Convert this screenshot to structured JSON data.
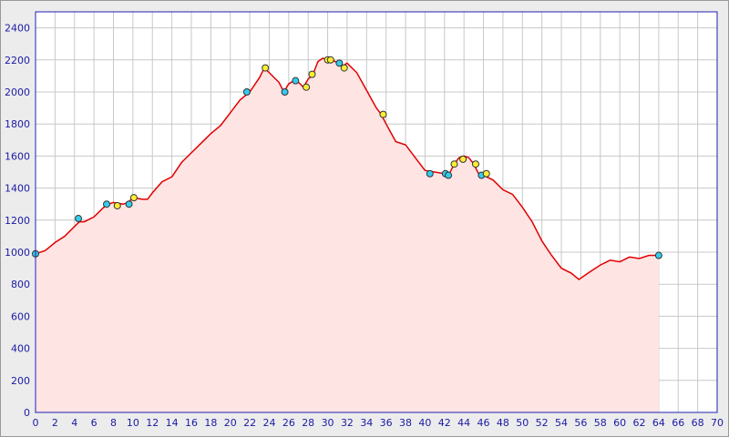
{
  "chart_data": {
    "type": "area",
    "x": [
      0,
      1,
      2,
      3,
      4,
      4.5,
      5,
      6,
      7,
      7.5,
      8,
      9,
      9.5,
      10,
      11,
      11.5,
      12,
      13,
      14,
      15,
      16,
      17,
      18,
      19,
      20,
      21,
      22,
      23,
      23.5,
      24,
      25,
      25.5,
      26,
      26.5,
      27,
      27.5,
      28,
      28.5,
      29,
      29.5,
      30,
      30.5,
      31,
      31.5,
      32,
      33,
      34,
      35,
      35.5,
      36,
      37,
      38,
      39,
      40,
      41,
      42,
      42.5,
      43,
      43.5,
      44,
      44.5,
      45,
      45.5,
      46,
      47,
      48,
      49,
      50,
      51,
      52,
      53,
      54,
      55,
      55.8,
      57,
      58,
      59,
      60,
      61,
      62,
      63,
      64
    ],
    "values": [
      990,
      1010,
      1060,
      1100,
      1160,
      1190,
      1190,
      1220,
      1280,
      1300,
      1310,
      1300,
      1310,
      1340,
      1330,
      1330,
      1370,
      1440,
      1470,
      1560,
      1620,
      1680,
      1740,
      1790,
      1870,
      1950,
      2000,
      2090,
      2150,
      2120,
      2060,
      2000,
      2050,
      2070,
      2060,
      2030,
      2080,
      2110,
      2190,
      2210,
      2200,
      2200,
      2180,
      2160,
      2180,
      2120,
      2010,
      1900,
      1860,
      1800,
      1690,
      1670,
      1590,
      1510,
      1500,
      1490,
      1490,
      1550,
      1590,
      1600,
      1590,
      1550,
      1490,
      1480,
      1450,
      1390,
      1360,
      1280,
      1190,
      1070,
      980,
      900,
      870,
      830,
      880,
      920,
      950,
      940,
      970,
      960,
      980,
      980
    ],
    "color": "#e00000",
    "fill": "#ffe4e4",
    "points": [
      {
        "color": "#33ccee",
        "x": [
          0,
          4.4,
          7.3,
          9.6,
          21.7,
          25.6,
          26.7,
          31.2,
          40.5,
          42.1,
          42.4,
          45.8,
          64
        ],
        "values": [
          990,
          1210,
          1300,
          1300,
          2000,
          2000,
          2070,
          2180,
          1490,
          1490,
          1480,
          1480,
          980
        ]
      },
      {
        "color": "#ffee33",
        "x": [
          8.4,
          10.1,
          23.6,
          27.8,
          28.4,
          30,
          30.3,
          31.7,
          35.7,
          43,
          43.9,
          45.2,
          46.3
        ],
        "values": [
          1290,
          1340,
          2150,
          2030,
          2110,
          2200,
          2200,
          2150,
          1860,
          1550,
          1580,
          1550,
          1490
        ]
      }
    ],
    "xlim": [
      0,
      70
    ],
    "xticks": [
      0,
      2,
      4,
      6,
      8,
      10,
      12,
      14,
      16,
      18,
      20,
      22,
      24,
      26,
      28,
      30,
      32,
      34,
      36,
      38,
      40,
      42,
      44,
      46,
      48,
      50,
      52,
      54,
      56,
      58,
      60,
      62,
      64,
      66,
      68,
      70
    ],
    "ylim": [
      0,
      2500
    ],
    "yticks": [
      0,
      200,
      400,
      600,
      800,
      1000,
      1200,
      1400,
      1600,
      1800,
      2000,
      2200,
      2400
    ],
    "grid": true
  }
}
